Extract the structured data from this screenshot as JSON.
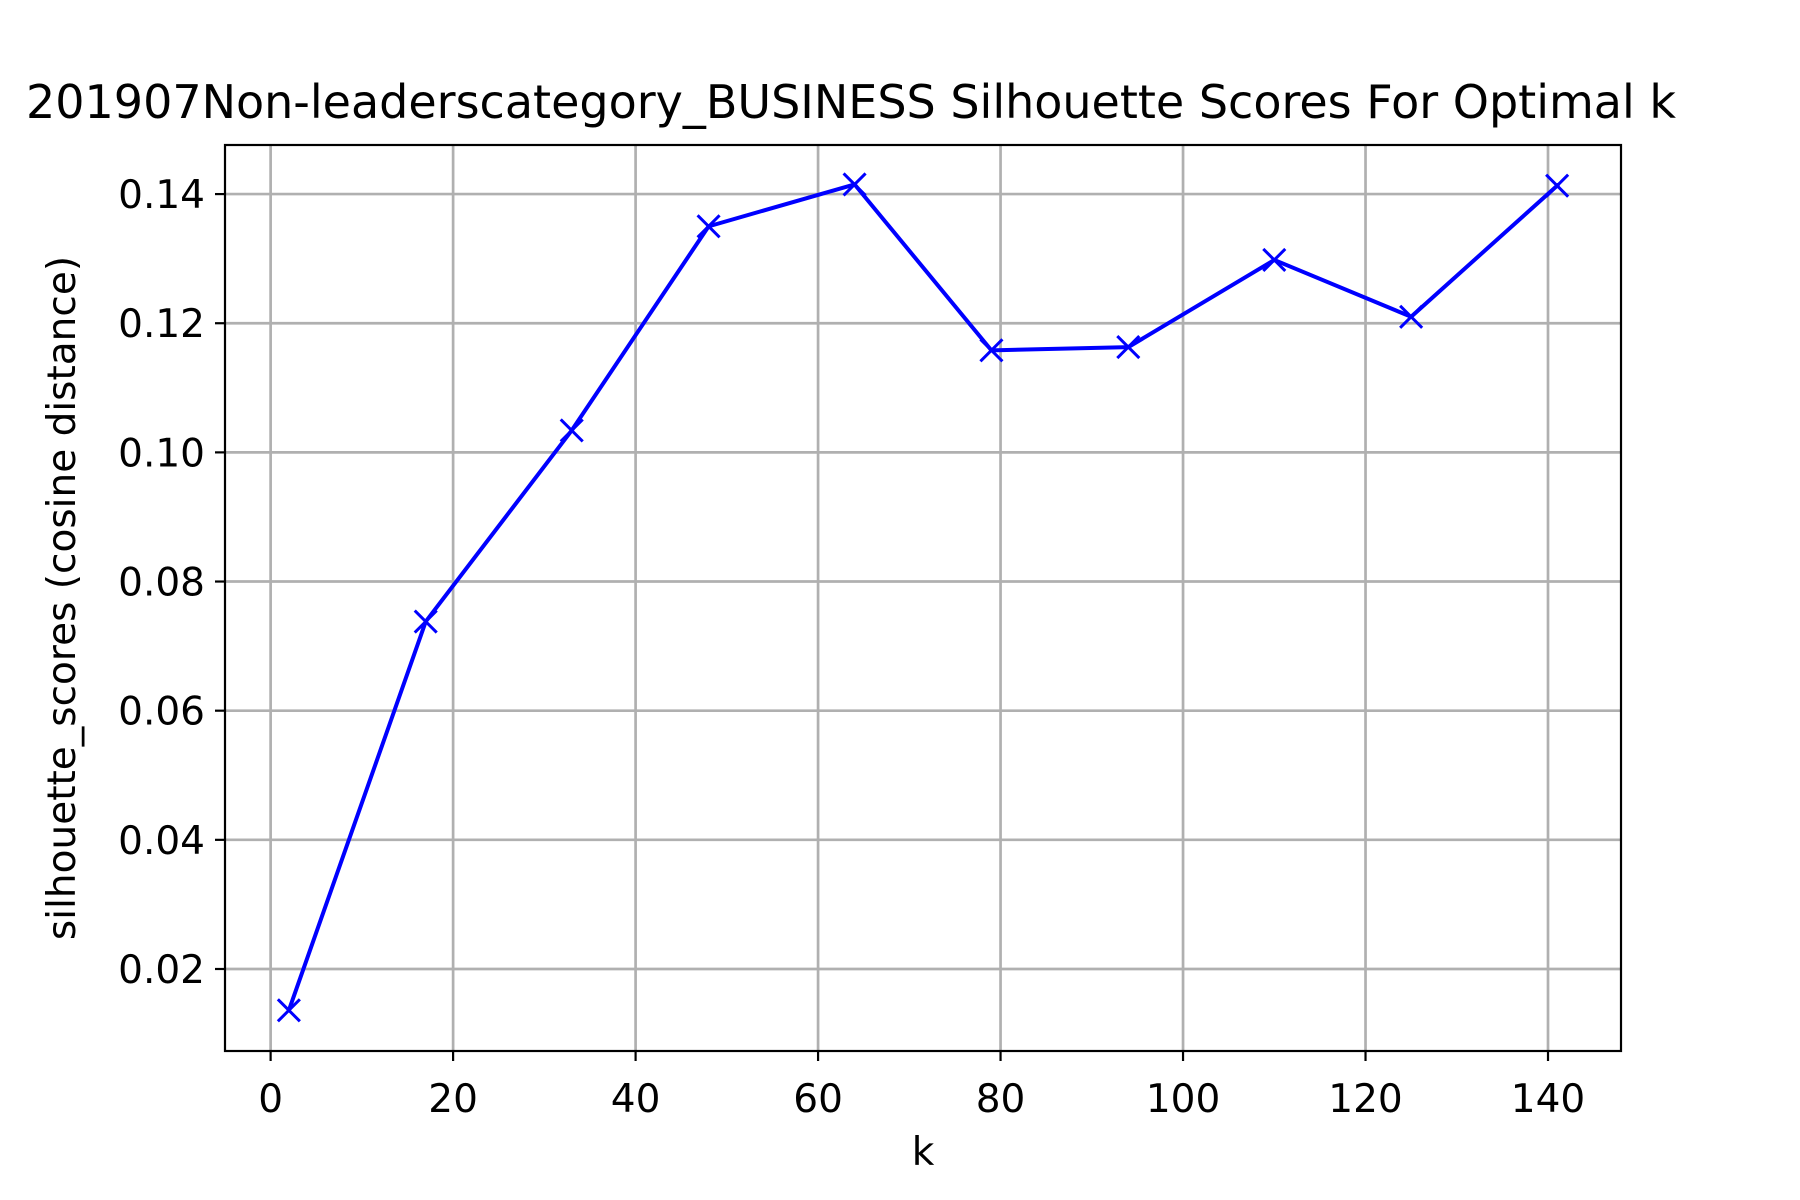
{
  "chart_data": {
    "type": "line",
    "title": "201907Non-leaderscategory_BUSINESS Silhouette Scores For Optimal k",
    "xlabel": "k",
    "ylabel": "silhouette_scores (cosine distance)",
    "xlim": [
      -5,
      148
    ],
    "ylim": [
      0.0073,
      0.1476
    ],
    "xticks": [
      0,
      20,
      40,
      60,
      80,
      100,
      120,
      140
    ],
    "yticks": [
      0.02,
      0.04,
      0.06,
      0.08,
      0.1,
      0.12,
      0.14
    ],
    "xtick_labels": [
      "0",
      "20",
      "40",
      "60",
      "80",
      "100",
      "120",
      "140"
    ],
    "ytick_labels": [
      "0.02",
      "0.04",
      "0.06",
      "0.08",
      "0.10",
      "0.12",
      "0.14"
    ],
    "grid": true,
    "marker": "x",
    "color": "#0000ff",
    "series": [
      {
        "x": [
          2,
          17,
          33,
          48,
          64,
          79,
          94,
          110,
          125,
          141
        ],
        "values": [
          0.0136,
          0.0738,
          0.1034,
          0.135,
          0.1415,
          0.1158,
          0.1163,
          0.1298,
          0.121,
          0.1413
        ]
      }
    ]
  }
}
